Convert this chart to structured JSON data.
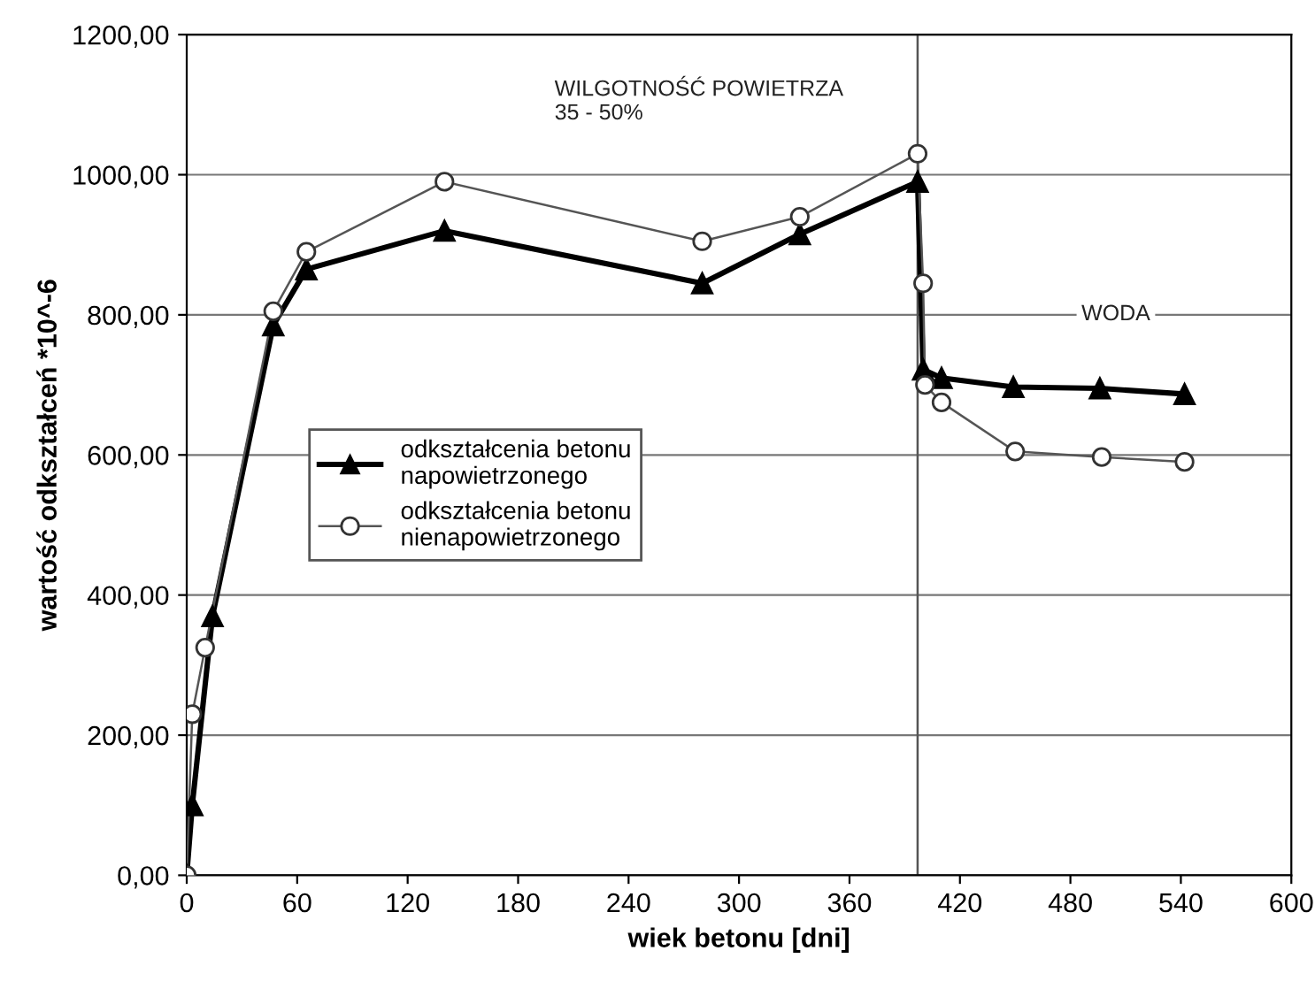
{
  "chart_data": {
    "type": "line",
    "xlabel": "wiek betonu [dni]",
    "ylabel": "wartość odkształceń *10^-6",
    "xlim": [
      0,
      600
    ],
    "xticks": [
      0,
      60,
      120,
      180,
      240,
      300,
      360,
      420,
      480,
      540,
      600
    ],
    "ylim": [
      0,
      1200
    ],
    "yticks": [
      {
        "value": 0,
        "label": "0,00"
      },
      {
        "value": 200,
        "label": "200,00"
      },
      {
        "value": 400,
        "label": "400,00"
      },
      {
        "value": 600,
        "label": "600,00"
      },
      {
        "value": 800,
        "label": "800,00"
      },
      {
        "value": 1000,
        "label": "1000,00"
      },
      {
        "value": 1200,
        "label": "1200,00"
      }
    ],
    "grid": "y",
    "legend": "left",
    "series": [
      {
        "name": "odkształcenia betonu napowietrzonego",
        "color": "#000000",
        "marker": "triangle",
        "x": [
          0,
          3,
          14,
          47,
          65,
          140,
          280,
          333,
          397,
          400,
          410,
          449,
          496,
          542
        ],
        "values": [
          0,
          100,
          370,
          785,
          865,
          920,
          845,
          915,
          990,
          722,
          710,
          697,
          695,
          687
        ]
      },
      {
        "name": "odkształcenia betonu nienapowietrzonego",
        "color": "#555555",
        "marker": "circle",
        "x": [
          0,
          3,
          10,
          47,
          65,
          140,
          280,
          333,
          397,
          400,
          401,
          410,
          450,
          497,
          542
        ],
        "values": [
          0,
          230,
          325,
          805,
          890,
          990,
          905,
          940,
          1030,
          845,
          700,
          675,
          605,
          597,
          590
        ]
      }
    ],
    "ref_lines": [
      {
        "axis": "x",
        "value": 397,
        "color": "#555555"
      }
    ],
    "annotations": [
      "WILGOTNOŚĆ POWIETRZA\n35 - 50%",
      "WODA"
    ]
  }
}
